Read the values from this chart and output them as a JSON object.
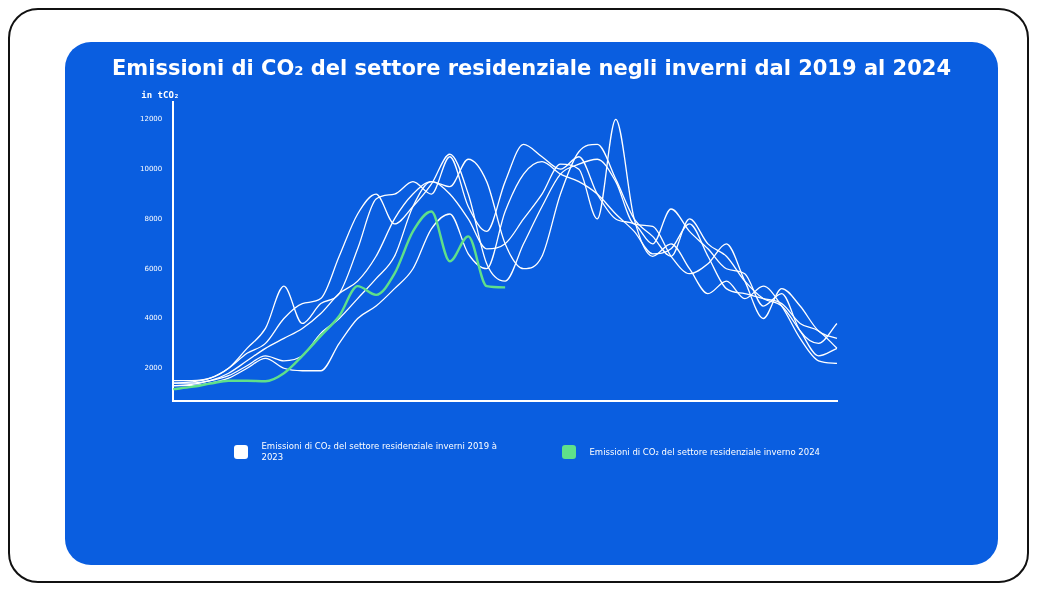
{
  "chart_data": {
    "type": "line",
    "title": "Emissioni di CO₂ del settore residenziale negli inverni dal 2019 al 2024",
    "ylabel": "in tCO₂",
    "categories": [
      null,
      null,
      null,
      null,
      null,
      null,
      null,
      null,
      null,
      null,
      null,
      null,
      null,
      null,
      null,
      null,
      null,
      null,
      null,
      null,
      null,
      null,
      null,
      null,
      null,
      null,
      null,
      null,
      null,
      null,
      null,
      null,
      null,
      null,
      null,
      null,
      null
    ],
    "ylim": [
      700,
      12700
    ],
    "yticks": [
      2000,
      4000,
      6000,
      8000,
      10000,
      12000
    ],
    "grid": false,
    "legend": "bottom",
    "marker": "none",
    "line_style": "solid",
    "series": [
      {
        "name": "Emissioni di CO₂ del settore residenziale inverni 2019 à 2023",
        "color": "#ffffff",
        "values": [
          1500,
          1500,
          1600,
          2000,
          2800,
          3600,
          5300,
          3800,
          4600,
          5000,
          6800,
          8800,
          9000,
          9500,
          9000,
          10500,
          8500,
          7500,
          9500,
          11000,
          10500,
          10000,
          10500,
          9000,
          8000,
          7800,
          7000,
          8400,
          7500,
          6800,
          6000,
          5800,
          4500,
          5000,
          3500,
          3000,
          3800
        ]
      },
      {
        "color": "#ffffff",
        "values": [
          1400,
          1400,
          1500,
          1800,
          2300,
          2800,
          3200,
          3600,
          4200,
          5000,
          5500,
          6500,
          8000,
          9000,
          9500,
          9300,
          10400,
          9500,
          7000,
          6000,
          6500,
          9000,
          10700,
          11000,
          9600,
          8000,
          7300,
          6500,
          8000,
          7000,
          6500,
          5500,
          4800,
          4500,
          3500,
          2500,
          2800
        ]
      },
      {
        "color": "#ffffff",
        "values": [
          1300,
          1350,
          1500,
          1700,
          2100,
          2500,
          2300,
          2500,
          3400,
          4000,
          4800,
          5600,
          6500,
          8500,
          9500,
          9000,
          8000,
          6800,
          7000,
          8000,
          9000,
          10200,
          10000,
          8000,
          12000,
          8000,
          6500,
          7000,
          6000,
          5000,
          5500,
          4800,
          5300,
          4500,
          3200,
          2300,
          2200
        ]
      },
      {
        "color": "#ffffff",
        "values": [
          1300,
          1300,
          1400,
          1600,
          2000,
          2400,
          2000,
          1900,
          1900,
          3000,
          4000,
          4500,
          5200,
          6000,
          7600,
          8200,
          6600,
          6000,
          8300,
          9800,
          10300,
          9800,
          9500,
          9000,
          8200,
          7500,
          6600,
          6800,
          7800,
          6500,
          5200,
          5000,
          4800,
          4600,
          3800,
          3500,
          2800
        ]
      },
      {
        "color": "#ffffff",
        "values": [
          1400,
          1450,
          1600,
          2000,
          2600,
          3000,
          4000,
          4600,
          4800,
          6500,
          8200,
          9000,
          7800,
          8500,
          9400,
          10600,
          9000,
          6200,
          5500,
          7000,
          8500,
          9800,
          10200,
          10400,
          9500,
          7800,
          7700,
          6500,
          5800,
          6200,
          7000,
          5500,
          4000,
          5200,
          4500,
          3500,
          3200
        ]
      },
      {
        "name": "Emissioni di CO₂ del settore residenziale inverno 2024",
        "color": "#5fe08a",
        "values": [
          1160,
          1250,
          1380,
          1500,
          1500,
          1480,
          1800,
          2500,
          3300,
          4100,
          5300,
          4950,
          5800,
          7500,
          8300,
          6300,
          7300,
          5300,
          5250,
          null,
          null,
          null,
          null,
          null,
          null,
          null,
          null,
          null,
          null,
          null,
          null,
          null,
          null,
          null,
          null,
          null,
          null
        ]
      }
    ]
  }
}
